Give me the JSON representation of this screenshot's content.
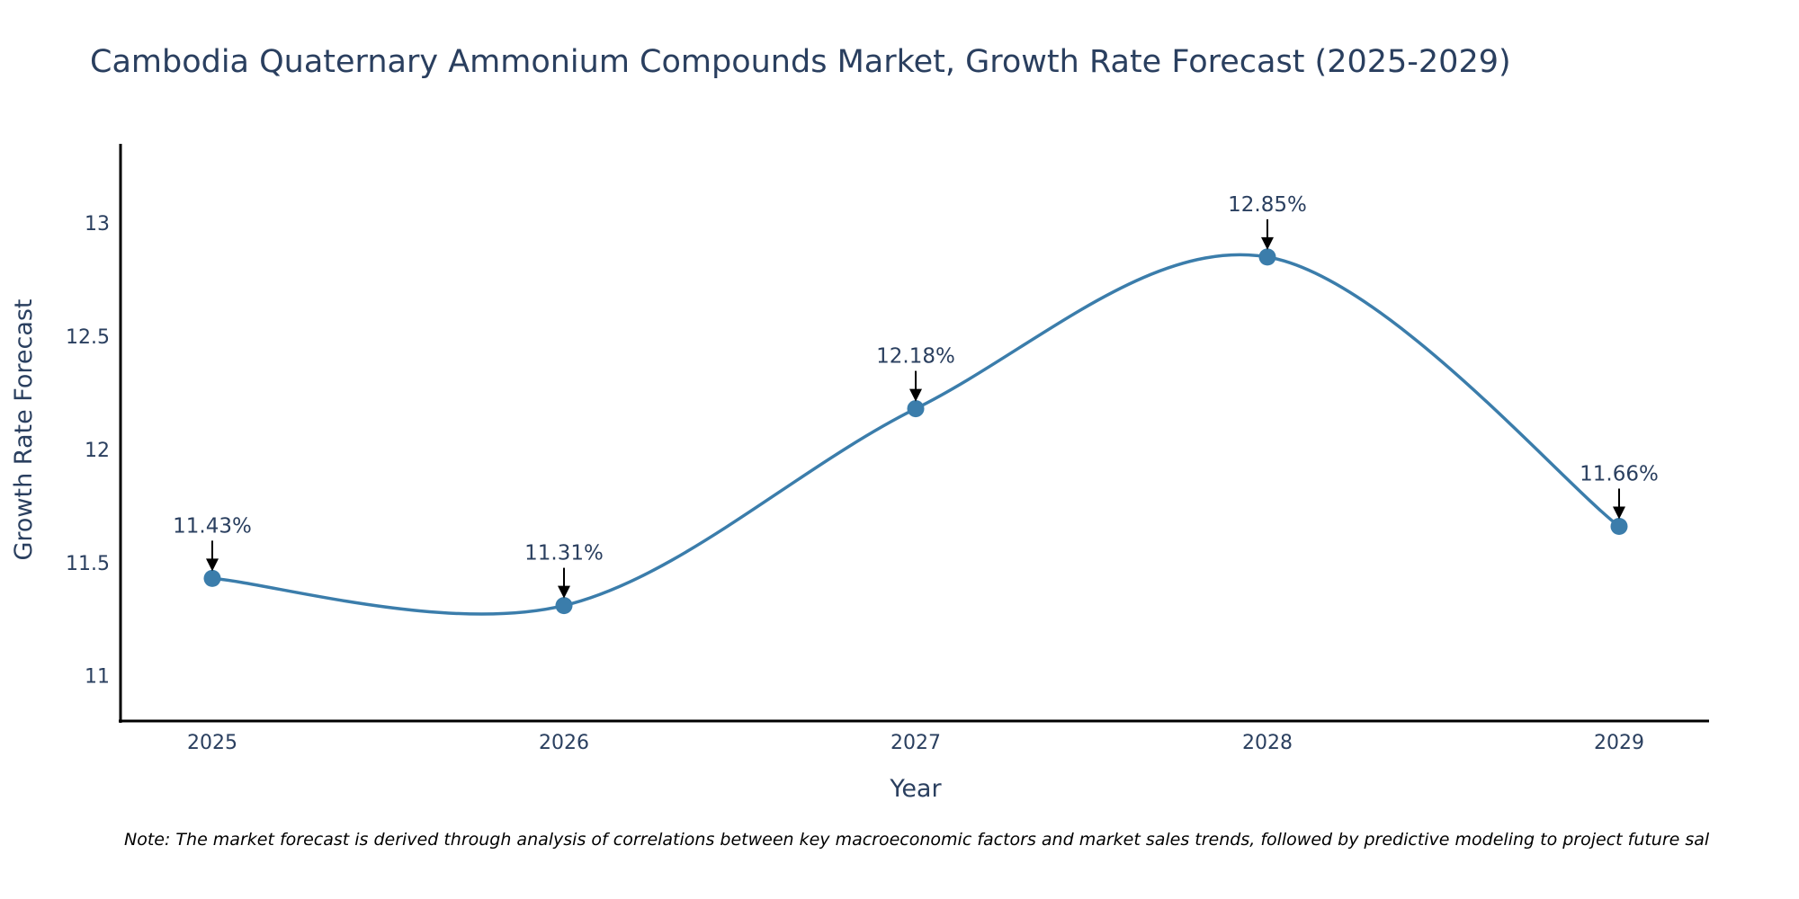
{
  "colors": {
    "line": "#3b7dab",
    "marker": "#3b7dab",
    "axis": "#000000",
    "text": "#2a3f5f",
    "arrow": "#000000"
  },
  "chart_data": {
    "type": "line",
    "title": "Cambodia Quaternary Ammonium Compounds Market, Growth Rate Forecast (2025-2029)",
    "xlabel": "Year",
    "ylabel": "Growth Rate Forecast",
    "categories": [
      "2025",
      "2026",
      "2027",
      "2028",
      "2029"
    ],
    "series": [
      {
        "name": "Growth Rate Forecast",
        "values": [
          11.43,
          11.31,
          12.18,
          12.85,
          11.66
        ],
        "labels": [
          "11.43%",
          "11.31%",
          "12.18%",
          "12.85%",
          "11.66%"
        ]
      }
    ],
    "ylim": [
      10.8,
      13.35
    ],
    "yticks": [
      11,
      11.5,
      12,
      12.5,
      13
    ],
    "ytick_labels": [
      "11",
      "11.5",
      "12",
      "12.5",
      "13"
    ],
    "grid": false,
    "line_shape": "spline",
    "note": "Note: The market forecast is derived through analysis of correlations between key macroeconomic factors and market sales trends, followed by predictive modeling to project future sal"
  }
}
